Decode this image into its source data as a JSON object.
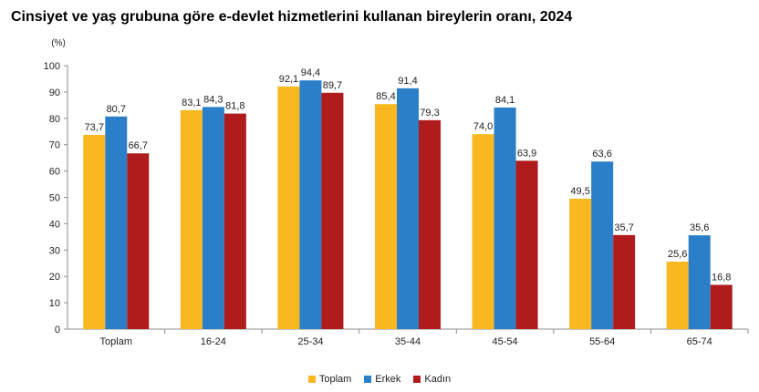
{
  "title": "Cinsiyet ve yaş grubuna göre e-devlet hizmetlerini kullanan bireylerin oranı, 2024",
  "chart_data": {
    "type": "bar",
    "title": "Cinsiyet ve yaş grubuna göre e-devlet hizmetlerini kullanan bireylerin oranı, 2024",
    "ylabel": "(%)",
    "xlabel": "",
    "ylim": [
      0,
      100
    ],
    "yticks": [
      0,
      10,
      20,
      30,
      40,
      50,
      60,
      70,
      80,
      90,
      100
    ],
    "grid": false,
    "legend_position": "bottom",
    "categories": [
      "Toplam",
      "16-24",
      "25-34",
      "35-44",
      "45-54",
      "55-64",
      "65-74"
    ],
    "series": [
      {
        "name": "Toplam",
        "color": "#f9b81f",
        "values": [
          73.7,
          83.1,
          92.1,
          85.4,
          74.0,
          49.5,
          25.6
        ],
        "labels": [
          "73,7",
          "83,1",
          "92,1",
          "85,4",
          "74,0",
          "49,5",
          "25,6"
        ]
      },
      {
        "name": "Erkek",
        "color": "#2a7fc8",
        "values": [
          80.7,
          84.3,
          94.4,
          91.4,
          84.1,
          63.6,
          35.6
        ],
        "labels": [
          "80,7",
          "84,3",
          "94,4",
          "91,4",
          "84,1",
          "63,6",
          "35,6"
        ]
      },
      {
        "name": "Kadın",
        "color": "#b01c1c",
        "values": [
          66.7,
          81.8,
          89.7,
          79.3,
          63.9,
          35.7,
          16.8
        ],
        "labels": [
          "66,7",
          "81,8",
          "89,7",
          "79,3",
          "63,9",
          "35,7",
          "16,8"
        ]
      }
    ]
  }
}
